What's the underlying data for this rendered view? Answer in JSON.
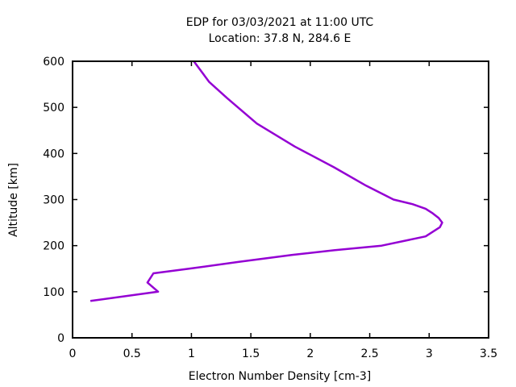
{
  "chart_data": {
    "type": "line",
    "title": "EDP for 03/03/2021 at 11:00 UTC",
    "subtitle": "Location: 37.8 N, 284.6 E",
    "xlabel": "Electron Number Density [cm-3]",
    "ylabel": "Altitude [km]",
    "xlim": [
      0,
      3.5
    ],
    "ylim": [
      0,
      600
    ],
    "xticks": [
      "0",
      "0.5",
      "1",
      "1.5",
      "2",
      "2.5",
      "3",
      "3.5"
    ],
    "yticks": [
      "0",
      "100",
      "200",
      "300",
      "400",
      "500",
      "600"
    ],
    "grid": false,
    "legend": "none",
    "series": [
      {
        "color": "#9400d3",
        "x": [
          0.15,
          0.72,
          0.63,
          0.68,
          0.98,
          1.4,
          1.85,
          2.2,
          2.6,
          2.97,
          3.09,
          3.11,
          3.08,
          3.03,
          2.97,
          2.86,
          2.7,
          2.47,
          2.2,
          1.87,
          1.55,
          1.3,
          1.15,
          1.02
        ],
        "y": [
          80,
          100,
          120,
          140,
          150,
          165,
          180,
          190,
          200,
          220,
          240,
          250,
          260,
          270,
          280,
          290,
          300,
          330,
          370,
          415,
          465,
          520,
          555,
          600
        ]
      }
    ]
  }
}
